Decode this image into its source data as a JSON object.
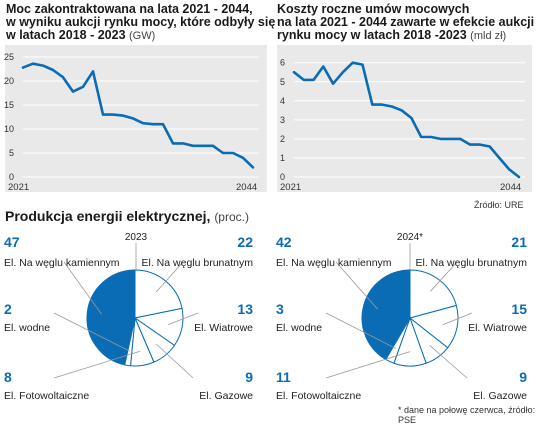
{
  "colors": {
    "accent": "#0a6cb4",
    "panel": "#e9e9e9",
    "leader": "#9a9a9a",
    "text": "#222222"
  },
  "chart_data": [
    {
      "type": "line",
      "title": "Moc zakontraktowana na lata 2021 - 2044, w wyniku aukcji rynku mocy, które odbyły się w latach 2018 - 2023",
      "title_lines": [
        "Moc zakontraktowana na lata 2021 - 2044,",
        "w wyniku aukcji rynku mocy, które odbyły się",
        "w latach 2018 - 2023"
      ],
      "unit": "(GW)",
      "x": [
        2021,
        2022,
        2023,
        2024,
        2025,
        2026,
        2027,
        2028,
        2029,
        2030,
        2031,
        2032,
        2033,
        2034,
        2035,
        2036,
        2037,
        2038,
        2039,
        2040,
        2041,
        2042,
        2043,
        2044
      ],
      "y": [
        22.8,
        23.6,
        23.2,
        22.3,
        20.8,
        17.8,
        18.8,
        22.0,
        13.0,
        13.0,
        12.8,
        12.2,
        11.2,
        11.0,
        11.0,
        7.0,
        7.0,
        6.5,
        6.5,
        6.5,
        5.0,
        5.0,
        4.0,
        2.0
      ],
      "x_tick_labels": [
        "2021",
        "2044"
      ],
      "y_ticks": [
        "0",
        "5",
        "10",
        "15",
        "20",
        "25"
      ],
      "ylim": [
        0,
        25
      ],
      "xlim": [
        2021,
        2044
      ],
      "grid": true
    },
    {
      "type": "line",
      "title": "Koszty roczne umów mocowych na lata 2021 - 2044 zawarte w efekcie aukcji rynku mocy w latach 2018 -2023",
      "title_lines": [
        "Koszty roczne umów mocowych",
        "na lata 2021 - 2044 zawarte w efekcie aukcji",
        "rynku mocy w latach 2018 -2023"
      ],
      "unit": "(mld zł)",
      "x": [
        2021,
        2022,
        2023,
        2024,
        2025,
        2026,
        2027,
        2028,
        2029,
        2030,
        2031,
        2032,
        2033,
        2034,
        2035,
        2036,
        2037,
        2038,
        2039,
        2040,
        2041,
        2042,
        2043,
        2044
      ],
      "y": [
        5.5,
        5.1,
        5.1,
        5.8,
        4.9,
        5.5,
        6.0,
        5.9,
        3.8,
        3.8,
        3.7,
        3.5,
        3.1,
        2.1,
        2.1,
        2.0,
        2.0,
        2.0,
        1.7,
        1.7,
        1.6,
        1.0,
        0.4,
        0.0
      ],
      "x_tick_labels": [
        "2021",
        "2044"
      ],
      "y_ticks": [
        "0",
        "1",
        "2",
        "3",
        "4",
        "5",
        "6"
      ],
      "ylim": [
        0,
        6.3
      ],
      "xlim": [
        2021,
        2044
      ],
      "grid": true
    },
    {
      "type": "pie",
      "title": "2023",
      "labels": [
        "El. Na węglu kamiennym",
        "El. Na węglu brunatnym",
        "El. Wiatrowe",
        "El. Gazowe",
        "El. Fotowoltaiczne",
        "El. wodne"
      ],
      "values": [
        47,
        22,
        13,
        9,
        8,
        2
      ],
      "display_values": [
        "47",
        "22",
        "13",
        "9",
        "8",
        "2"
      ],
      "highlight": [
        "El. Na węglu kamiennym"
      ]
    },
    {
      "type": "pie",
      "title": "2024*",
      "labels": [
        "El. Na węglu kamiennym",
        "El. Na węglu brunatnym",
        "El. Wiatrowe",
        "El. Gazowe",
        "El. Fotowoltaiczne",
        "El. wodne"
      ],
      "values": [
        42,
        21,
        15,
        9,
        11,
        3
      ],
      "display_values": [
        "42",
        "21",
        "15",
        "9",
        "11",
        "3"
      ],
      "highlight": [
        "El. Na węglu kamiennym"
      ]
    }
  ],
  "section": {
    "title": "Produkcja energii elektrycznej,",
    "unit": "(proc.)"
  },
  "source_top": "Źródło: URE",
  "footnote": "* dane na połowę czerwca, źródło: PSE"
}
